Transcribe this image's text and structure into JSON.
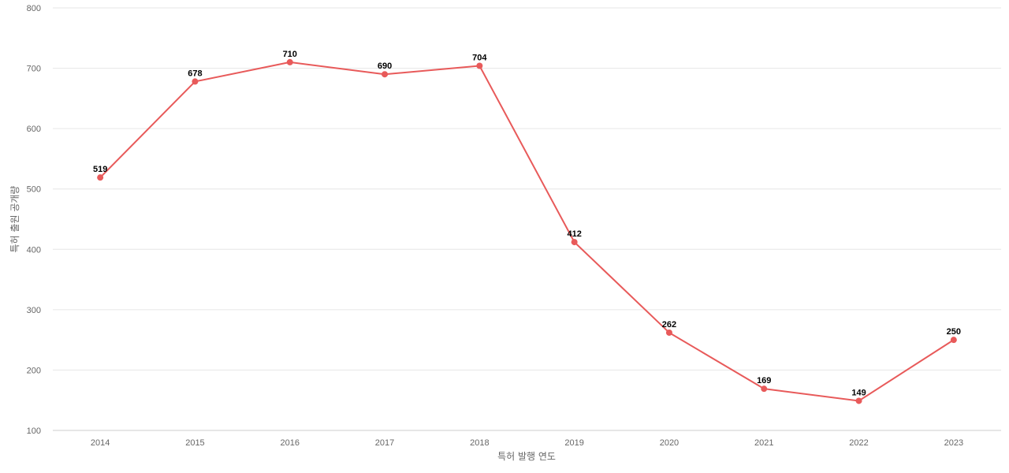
{
  "chart_data": {
    "type": "line",
    "title": "",
    "xlabel": "특허 발행 연도",
    "ylabel": "특허 출원 공개량",
    "x": [
      "2014",
      "2015",
      "2016",
      "2017",
      "2018",
      "2019",
      "2020",
      "2021",
      "2022",
      "2023"
    ],
    "series": [
      {
        "values": [
          519,
          678,
          710,
          690,
          704,
          412,
          262,
          169,
          149,
          250
        ],
        "color": "#e85a5a"
      }
    ],
    "ylim": [
      100,
      800
    ],
    "yticks": [
      100,
      200,
      300,
      400,
      500,
      600,
      700,
      800
    ],
    "grid": true,
    "legend": "none"
  }
}
